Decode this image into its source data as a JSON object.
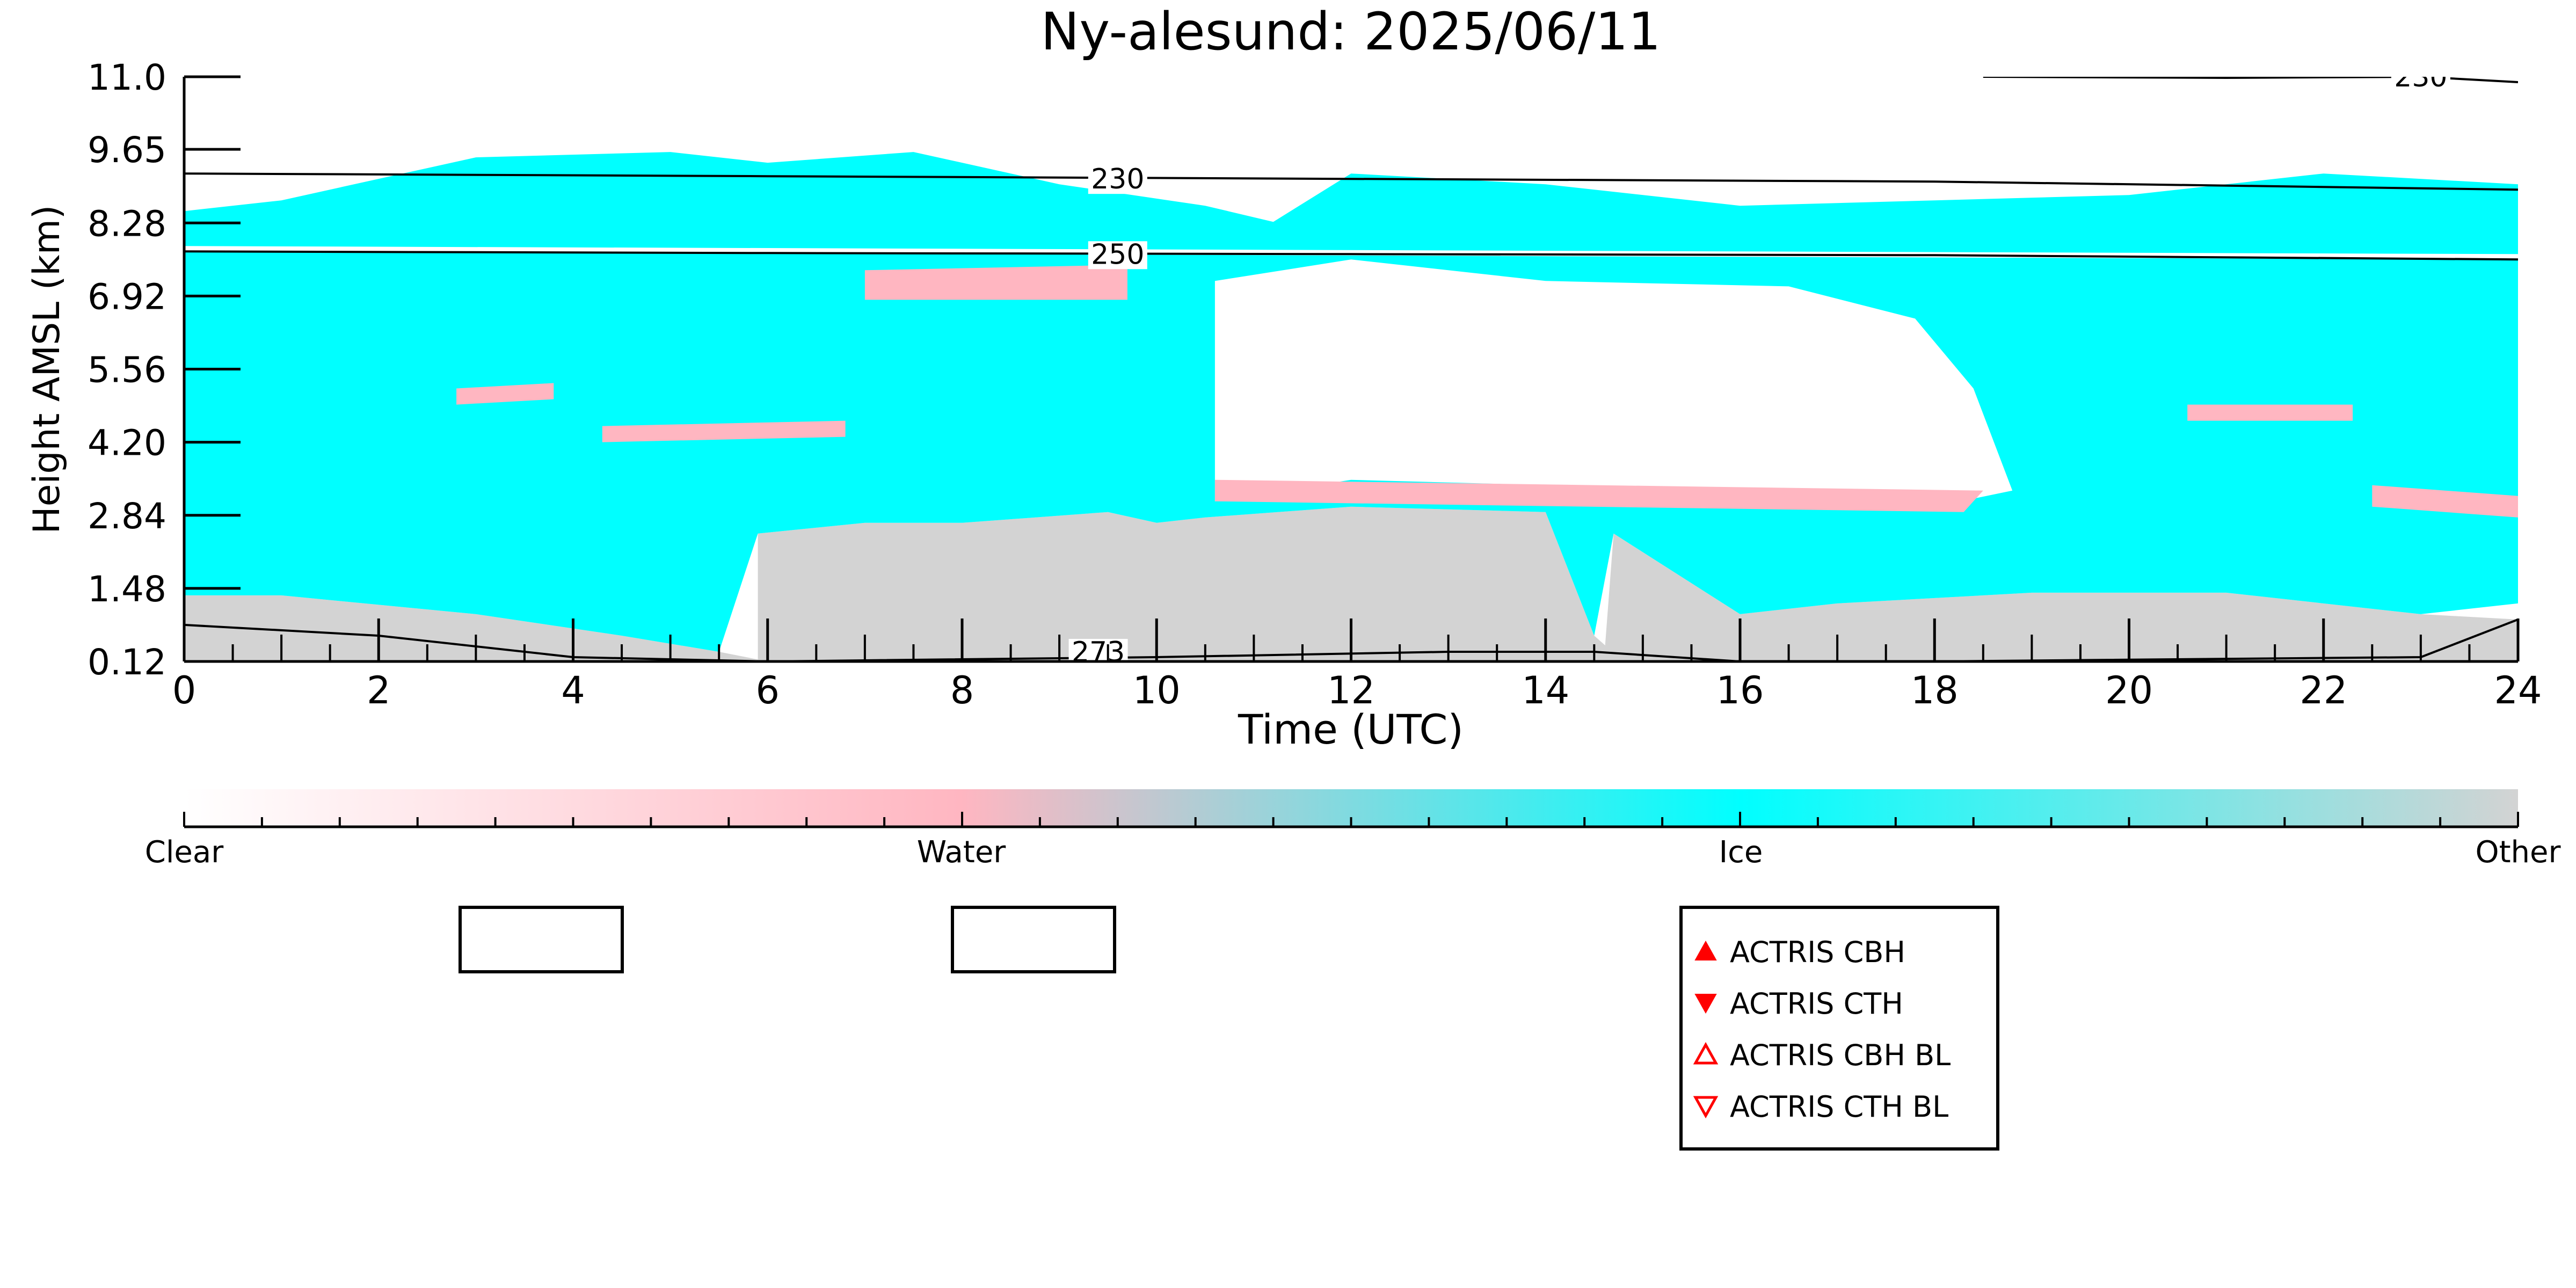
{
  "chart_data": {
    "type": "heatmap",
    "title": "Ny-alesund: 2025/06/11",
    "xlabel": "Time (UTC)",
    "ylabel": "Height AMSL (km)",
    "xlim": [
      0,
      24
    ],
    "ylim": [
      0.12,
      11.0
    ],
    "x_ticks": [
      "0",
      "2",
      "4",
      "6",
      "8",
      "10",
      "12",
      "14",
      "16",
      "18",
      "20",
      "22",
      "24"
    ],
    "y_ticks": [
      "0.12",
      "1.48",
      "2.84",
      "4.20",
      "5.56",
      "6.92",
      "8.28",
      "9.65",
      "11.0"
    ],
    "categories": [
      "Clear",
      "Water",
      "Ice",
      "Other"
    ],
    "colors": {
      "clear": "#ffffff",
      "water": "#ffb6c1",
      "ice": "#00ffff",
      "other": "#d3d3d3"
    },
    "isotherms": [
      {
        "label": "230",
        "points": [
          [
            0,
            9.2
          ],
          [
            6,
            9.15
          ],
          [
            12,
            9.1
          ],
          [
            18,
            9.05
          ],
          [
            24,
            8.9
          ]
        ]
      },
      {
        "label": "250",
        "points": [
          [
            0,
            7.75
          ],
          [
            6,
            7.72
          ],
          [
            12,
            7.7
          ],
          [
            18,
            7.68
          ],
          [
            24,
            7.6
          ]
        ]
      },
      {
        "label": "273",
        "points": [
          [
            0,
            0.8
          ],
          [
            2,
            0.6
          ],
          [
            4,
            0.2
          ],
          [
            6,
            0.12
          ],
          [
            10,
            0.2
          ],
          [
            13,
            0.3
          ],
          [
            14.5,
            0.3
          ],
          [
            16,
            0.12
          ],
          [
            18,
            0.12
          ],
          [
            23,
            0.2
          ],
          [
            24,
            0.9
          ]
        ]
      },
      {
        "label": "230",
        "points": [
          [
            18.5,
            11.0
          ],
          [
            21,
            10.98
          ],
          [
            23,
            11.0
          ],
          [
            24,
            10.9
          ]
        ]
      }
    ],
    "regions": [
      {
        "class": "other",
        "points": [
          [
            0,
            0.12
          ],
          [
            0,
            1.35
          ],
          [
            1,
            1.35
          ],
          [
            3,
            1.0
          ],
          [
            4.5,
            0.6
          ],
          [
            5.5,
            0.3
          ],
          [
            6,
            0.12
          ]
        ]
      },
      {
        "class": "other",
        "points": [
          [
            5.9,
            0.12
          ],
          [
            5.9,
            2.5
          ],
          [
            7,
            2.7
          ],
          [
            8,
            2.7
          ],
          [
            9.5,
            2.9
          ],
          [
            10,
            2.7
          ],
          [
            10.5,
            2.8
          ],
          [
            12,
            3.0
          ],
          [
            14,
            2.9
          ],
          [
            14.5,
            0.6
          ],
          [
            14.8,
            0.12
          ]
        ]
      },
      {
        "class": "other",
        "points": [
          [
            14.6,
            0.12
          ],
          [
            14.7,
            2.5
          ],
          [
            16,
            1.0
          ],
          [
            17,
            1.2
          ],
          [
            19,
            1.4
          ],
          [
            21,
            1.4
          ],
          [
            23,
            1.0
          ],
          [
            24,
            0.9
          ],
          [
            24,
            0.12
          ]
        ]
      },
      {
        "class": "ice",
        "points": [
          [
            0,
            1.35
          ],
          [
            0,
            8.5
          ],
          [
            1,
            8.7
          ],
          [
            3,
            9.5
          ],
          [
            5,
            9.6
          ],
          [
            6,
            9.4
          ],
          [
            7.5,
            9.6
          ],
          [
            9,
            9.0
          ],
          [
            10.5,
            8.6
          ],
          [
            11.2,
            8.3
          ],
          [
            12,
            9.2
          ],
          [
            14,
            9.0
          ],
          [
            16,
            8.6
          ],
          [
            18,
            8.7
          ],
          [
            20,
            8.8
          ],
          [
            22,
            9.2
          ],
          [
            24,
            9.0
          ],
          [
            24,
            1.2
          ],
          [
            23,
            1.0
          ],
          [
            21,
            1.4
          ],
          [
            19,
            1.4
          ],
          [
            17,
            1.2
          ],
          [
            16,
            1.0
          ],
          [
            14.7,
            2.5
          ],
          [
            14.5,
            0.6
          ],
          [
            14,
            2.9
          ],
          [
            12,
            3.0
          ],
          [
            10.5,
            2.8
          ],
          [
            10,
            2.7
          ],
          [
            9.5,
            2.9
          ],
          [
            8,
            2.7
          ],
          [
            7,
            2.7
          ],
          [
            5.9,
            2.5
          ],
          [
            5.5,
            0.3
          ],
          [
            4.5,
            0.6
          ],
          [
            3,
            1.0
          ],
          [
            1,
            1.35
          ]
        ]
      },
      {
        "class": "clear",
        "points": [
          [
            10.6,
            7.2
          ],
          [
            10.6,
            3.1
          ],
          [
            12,
            3.5
          ],
          [
            14,
            3.4
          ],
          [
            16,
            3.3
          ],
          [
            18,
            3.0
          ],
          [
            18.8,
            3.3
          ],
          [
            18.4,
            5.2
          ],
          [
            17.8,
            6.5
          ],
          [
            16.5,
            7.1
          ],
          [
            14,
            7.2
          ],
          [
            12,
            7.6
          ]
        ]
      },
      {
        "class": "clear",
        "points": [
          [
            0,
            7.75
          ],
          [
            24,
            7.6
          ],
          [
            24,
            7.7
          ],
          [
            0,
            7.85
          ]
        ]
      },
      {
        "class": "water",
        "points": [
          [
            7,
            7.4
          ],
          [
            9.7,
            7.5
          ],
          [
            9.7,
            6.85
          ],
          [
            7,
            6.85
          ]
        ]
      },
      {
        "class": "water",
        "points": [
          [
            4.3,
            4.5
          ],
          [
            6.8,
            4.6
          ],
          [
            6.8,
            4.3
          ],
          [
            4.3,
            4.2
          ]
        ]
      },
      {
        "class": "water",
        "points": [
          [
            10.6,
            3.5
          ],
          [
            18.5,
            3.3
          ],
          [
            18.3,
            2.9
          ],
          [
            10.6,
            3.1
          ]
        ]
      },
      {
        "class": "water",
        "points": [
          [
            22.5,
            3.4
          ],
          [
            24,
            3.2
          ],
          [
            24,
            2.8
          ],
          [
            22.5,
            3.0
          ]
        ]
      },
      {
        "class": "water",
        "points": [
          [
            2.8,
            5.2
          ],
          [
            3.8,
            5.3
          ],
          [
            3.8,
            5.0
          ],
          [
            2.8,
            4.9
          ]
        ]
      },
      {
        "class": "water",
        "points": [
          [
            20.6,
            4.9
          ],
          [
            22.3,
            4.9
          ],
          [
            22.3,
            4.6
          ],
          [
            20.6,
            4.6
          ]
        ]
      }
    ],
    "colorbar": {
      "labels": [
        "Clear",
        "Water",
        "Ice",
        "Other"
      ],
      "positions": [
        0,
        0.333,
        0.667,
        1.0
      ]
    },
    "legend": {
      "placement": "bottom-right",
      "entries": [
        "ACTRIS CBH",
        "ACTRIS CTH",
        "ACTRIS CBH BL",
        "ACTRIS CTH BL"
      ],
      "marker_color": "#ff0000"
    }
  }
}
